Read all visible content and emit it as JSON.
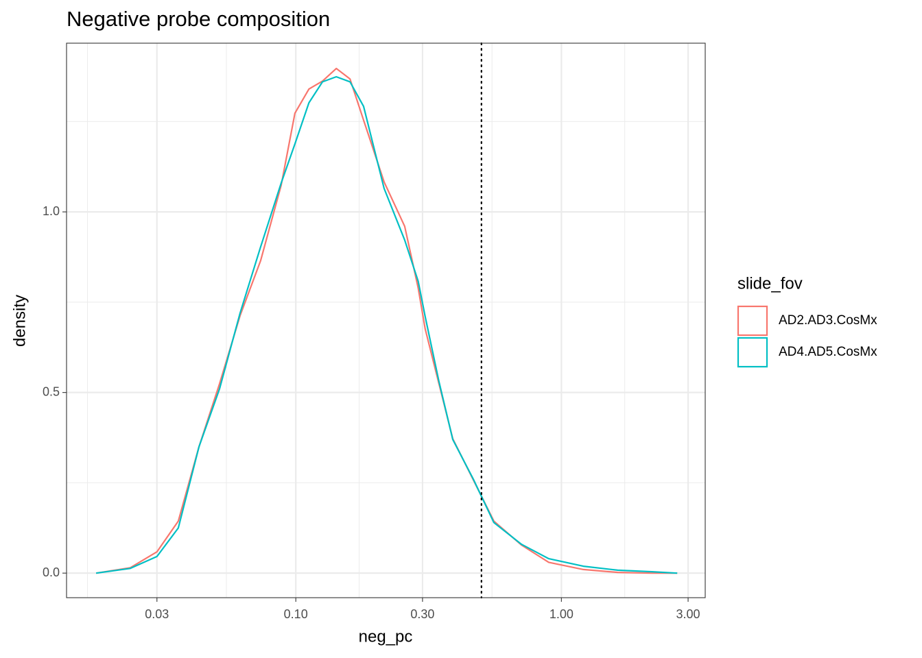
{
  "chart_data": {
    "type": "line",
    "title": "Negative probe composition",
    "x_label": "neg_pc",
    "y_label": "density",
    "log_x": true,
    "grid": true,
    "legend_title": "slide_fov",
    "legend_position": "right",
    "xlim": [
      0.0137,
      3.48
    ],
    "ylim": [
      -0.068,
      1.467
    ],
    "xticks": [
      {
        "value": 0.03,
        "label": "0.03"
      },
      {
        "value": 0.1,
        "label": "0.10"
      },
      {
        "value": 0.3,
        "label": "0.30"
      },
      {
        "value": 1,
        "label": "1.00"
      },
      {
        "value": 3,
        "label": "3.00"
      }
    ],
    "yticks": [
      {
        "value": 0,
        "label": "0.0"
      },
      {
        "value": 0.5,
        "label": "0.5"
      },
      {
        "value": 1,
        "label": "1.0"
      }
    ],
    "vline": 0.5,
    "x": [
      0.0177,
      0.0238,
      0.03,
      0.0361,
      0.0432,
      0.0516,
      0.0617,
      0.0737,
      0.0881,
      0.0992,
      0.112,
      0.126,
      0.142,
      0.16,
      0.18,
      0.215,
      0.257,
      0.289,
      0.307,
      0.346,
      0.39,
      0.466,
      0.557,
      0.707,
      0.896,
      1.21,
      1.63,
      2.19,
      2.73
    ],
    "series": [
      {
        "name": "AD2.AD3.CosMx",
        "color": "#f8766d",
        "values": [
          0,
          0.015,
          0.059,
          0.144,
          0.35,
          0.524,
          0.713,
          0.865,
          1.074,
          1.273,
          1.34,
          1.362,
          1.397,
          1.368,
          1.254,
          1.083,
          0.96,
          0.789,
          0.676,
          0.524,
          0.372,
          0.258,
          0.144,
          0.078,
          0.03,
          0.01,
          0.002,
          0,
          0
        ]
      },
      {
        "name": "AD4.AD5.CosMx",
        "color": "#00bfc4",
        "values": [
          0,
          0.013,
          0.046,
          0.125,
          0.35,
          0.51,
          0.72,
          0.903,
          1.08,
          1.188,
          1.302,
          1.36,
          1.374,
          1.36,
          1.292,
          1.065,
          0.922,
          0.808,
          0.71,
          0.53,
          0.37,
          0.26,
          0.14,
          0.08,
          0.04,
          0.019,
          0.008,
          0.004,
          0
        ]
      }
    ]
  }
}
